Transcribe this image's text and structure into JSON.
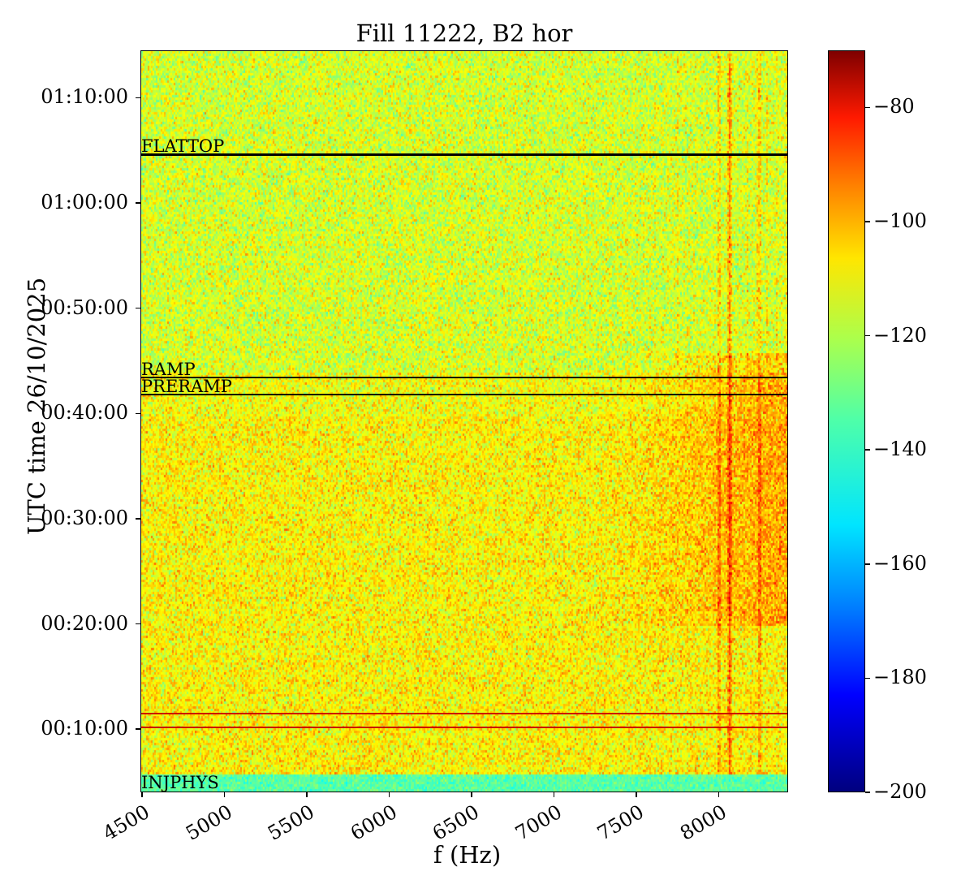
{
  "chart_data": {
    "type": "heatmap",
    "title": "Fill 11222, B2 hor",
    "xlabel": "f (Hz)",
    "ylabel": "UTC time 26/10/2025",
    "xlim": [
      4490,
      8420
    ],
    "ylim_minutes": [
      4.0,
      74.5
    ],
    "x_ticks": [
      4500,
      5000,
      5500,
      6000,
      6500,
      7000,
      7500,
      8000
    ],
    "x_tick_labels": [
      "4500",
      "5000",
      "5500",
      "6000",
      "6500",
      "7000",
      "7500",
      "8000"
    ],
    "y_ticks_minutes": [
      10,
      20,
      30,
      40,
      50,
      60,
      70
    ],
    "y_tick_labels": [
      "00:10:00",
      "00:20:00",
      "00:30:00",
      "00:40:00",
      "00:50:00",
      "01:00:00",
      "01:10:00"
    ],
    "colorbar": {
      "colormap": "jet",
      "range": [
        -200,
        -70
      ],
      "ticks": [
        -80,
        -100,
        -120,
        -140,
        -160,
        -180,
        -200
      ],
      "tick_labels": [
        "−80",
        "−100",
        "−120",
        "−140",
        "−160",
        "−180",
        "−200"
      ]
    },
    "background_level_dB": -120,
    "high_activity_region": {
      "f_range": [
        7300,
        8420
      ],
      "t_range_minutes": [
        20,
        46
      ],
      "level_dB": -108
    },
    "strong_lines_Hz": [
      7990,
      8050,
      8060,
      8240
    ],
    "beam_modes": [
      {
        "label": "FLATTOP",
        "time_minutes": 64.7,
        "color": "#000000"
      },
      {
        "label": "RAMP",
        "time_minutes": 43.5,
        "color": "#000000"
      },
      {
        "label": "PRERAMP",
        "time_minutes": 41.9,
        "color": "#000000"
      },
      {
        "label": "INJPHYS",
        "time_minutes": 5.8,
        "color": "#000000"
      }
    ],
    "marker_lines": [
      {
        "time_minutes": 11.6,
        "color": "#cc0000"
      },
      {
        "time_minutes": 10.3,
        "color": "#cc0000"
      }
    ]
  }
}
